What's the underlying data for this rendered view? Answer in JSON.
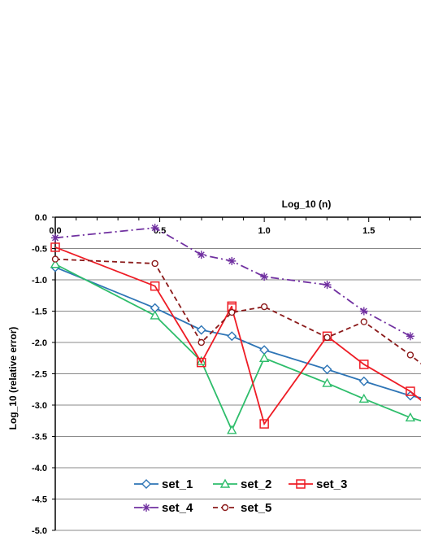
{
  "chart_data": {
    "type": "line",
    "title": "",
    "xlabel": "Log_10 (n)",
    "ylabel": "Log_10 (relative error)",
    "xlim": [
      0,
      1.75
    ],
    "ylim": [
      -5.0,
      0.0
    ],
    "x_ticks": [
      "0.0",
      "0.5",
      "1.0",
      "1.5"
    ],
    "x_tick_values": [
      0.0,
      0.5,
      1.0,
      1.5
    ],
    "y_ticks": [
      "0.0",
      "-0.5",
      "-1.0",
      "-1.5",
      "-2.0",
      "-2.5",
      "-3.0",
      "-3.5",
      "-4.0",
      "-4.5",
      "-5.0"
    ],
    "y_tick_values": [
      0.0,
      -0.5,
      -1.0,
      -1.5,
      -2.0,
      -2.5,
      -3.0,
      -3.5,
      -4.0,
      -4.5,
      -5.0
    ],
    "x_axis_position": "top",
    "grid": "horizontal",
    "legend": "bottom-inside",
    "series": [
      {
        "name": "set_1",
        "color": "#2e75b6",
        "marker": "diamond",
        "dash": "solid",
        "x": [
          0.0,
          0.477,
          0.699,
          0.845,
          1.0,
          1.301,
          1.477,
          1.699,
          1.85
        ],
        "y": [
          -0.8,
          -1.45,
          -1.8,
          -1.9,
          -2.12,
          -2.43,
          -2.62,
          -2.85,
          -2.95
        ]
      },
      {
        "name": "set_2",
        "color": "#2ebd6b",
        "marker": "triangle",
        "dash": "solid",
        "x": [
          0.0,
          0.477,
          0.699,
          0.845,
          1.0,
          1.301,
          1.477,
          1.699,
          1.85
        ],
        "y": [
          -0.75,
          -1.57,
          -2.3,
          -3.4,
          -2.25,
          -2.65,
          -2.9,
          -3.2,
          -3.35
        ]
      },
      {
        "name": "set_3",
        "color": "#ee1c25",
        "marker": "square",
        "dash": "solid",
        "x": [
          0.0,
          0.477,
          0.699,
          0.845,
          0.845,
          1.0,
          1.301,
          1.477,
          1.699,
          1.85
        ],
        "y": [
          -0.48,
          -1.1,
          -2.32,
          -1.42,
          -1.45,
          -3.3,
          -1.9,
          -2.35,
          -2.78,
          -3.2
        ]
      },
      {
        "name": "set_4",
        "color": "#7030a0",
        "marker": "star",
        "dash": "dashdot",
        "x": [
          0.0,
          0.477,
          0.699,
          0.845,
          1.0,
          1.301,
          1.477,
          1.699
        ],
        "y": [
          -0.33,
          -0.17,
          -0.6,
          -0.7,
          -0.95,
          -1.08,
          -1.5,
          -1.9
        ]
      },
      {
        "name": "set_5",
        "color": "#8b1a1a",
        "marker": "circle",
        "dash": "dashed",
        "x": [
          0.0,
          0.477,
          0.699,
          0.845,
          1.0,
          1.301,
          1.477,
          1.699,
          1.85
        ],
        "y": [
          -0.67,
          -0.74,
          -2.0,
          -1.52,
          -1.43,
          -1.92,
          -1.67,
          -2.2,
          -2.6
        ]
      }
    ]
  }
}
